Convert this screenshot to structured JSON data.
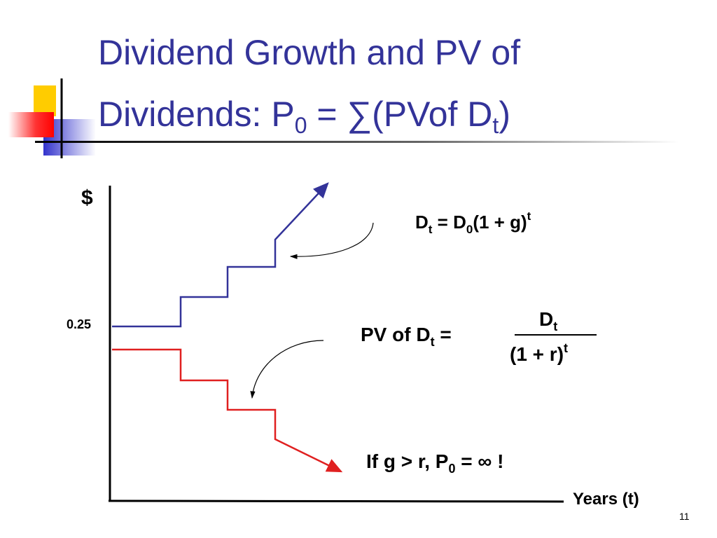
{
  "title": {
    "line1": "Dividend Growth and PV of",
    "line2": [
      "Dividends: P",
      "0",
      " = ∑(PVof D",
      "t",
      ")"
    ]
  },
  "axes": {
    "y_label": "$",
    "y_value": "0.25",
    "x_label": "Years (t)"
  },
  "formula_growth": [
    "D",
    "t",
    " = D",
    "0",
    "(1 + g)",
    "t"
  ],
  "formula_pv": {
    "left": [
      "PV of D",
      "t",
      " ="
    ],
    "numerator": [
      "D",
      "t"
    ],
    "denominator": [
      "(1 + r)",
      "t"
    ]
  },
  "formula_infinite": [
    "If g > r, P",
    "0",
    " = ∞ !"
  ],
  "page_number": "11"
}
